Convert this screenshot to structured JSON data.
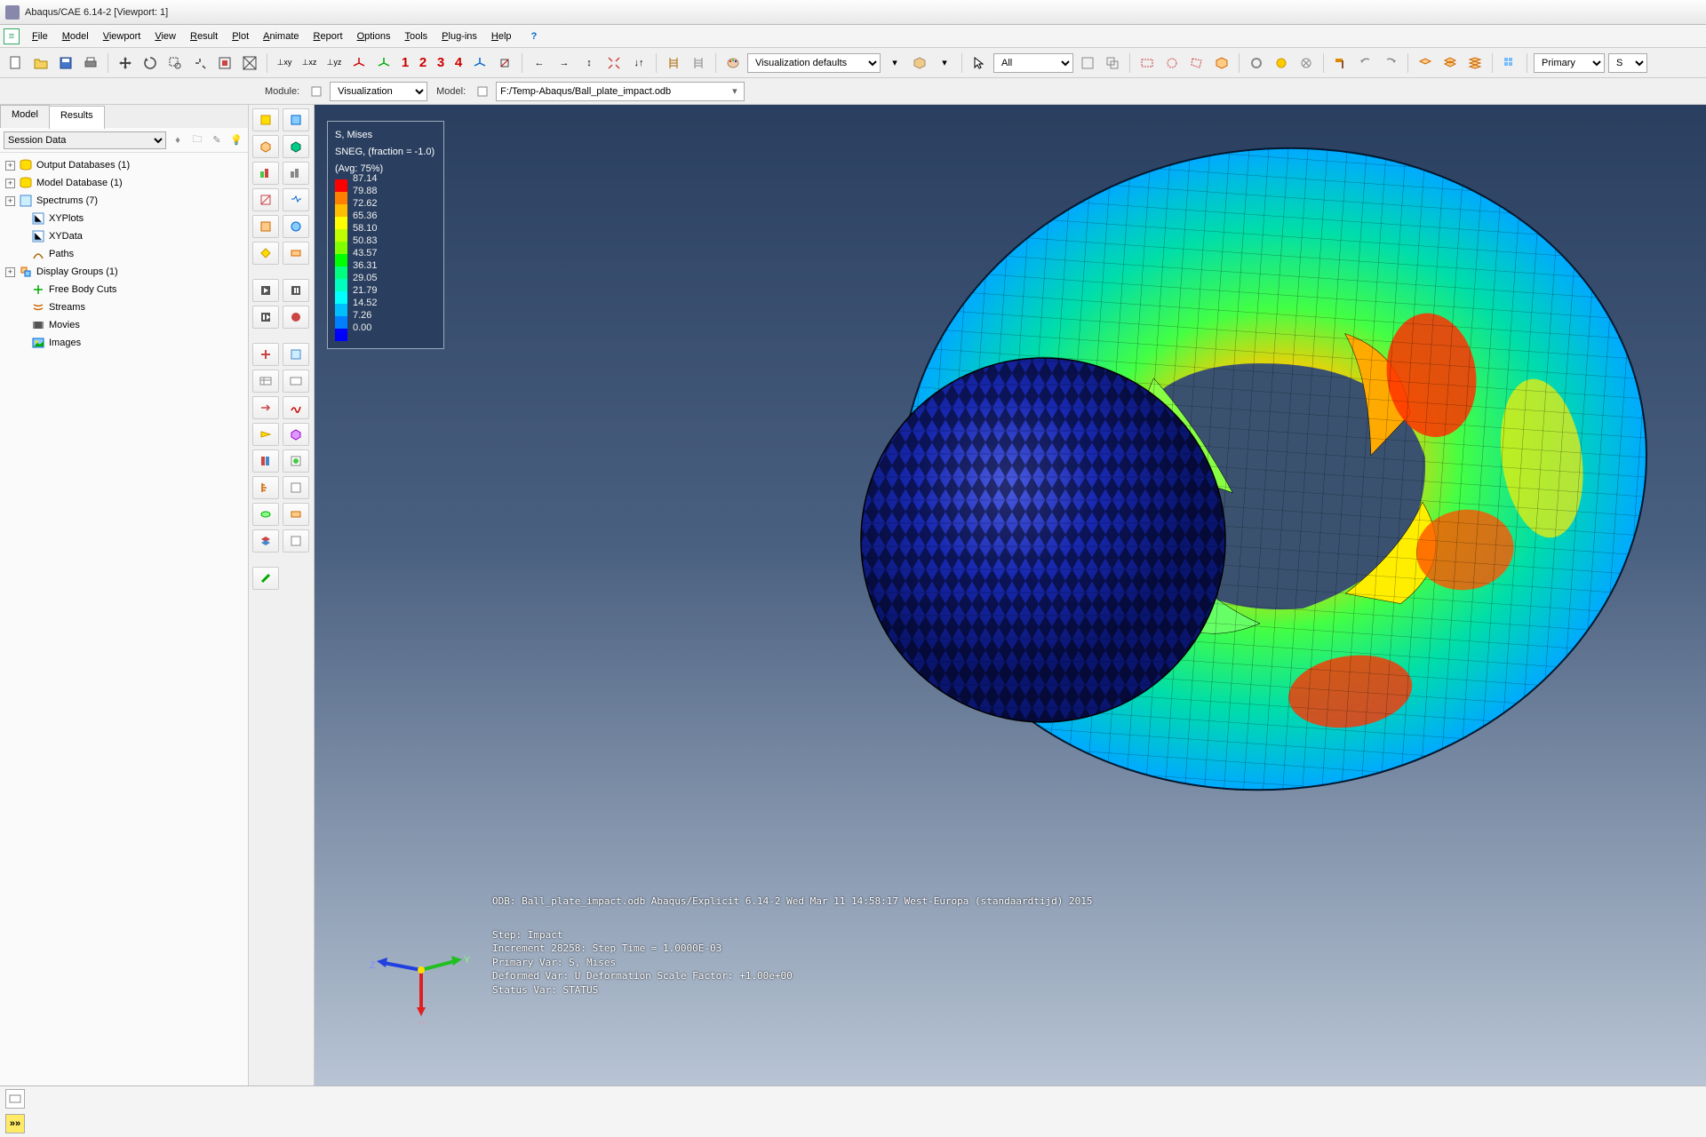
{
  "title": "Abaqus/CAE 6.14-2  [Viewport: 1]",
  "menu": [
    "File",
    "Model",
    "Viewport",
    "View",
    "Result",
    "Plot",
    "Animate",
    "Report",
    "Options",
    "Tools",
    "Plug-ins",
    "Help"
  ],
  "toolbar": {
    "nums": [
      "1",
      "2",
      "3",
      "4"
    ],
    "vis_defaults": "Visualization defaults",
    "all": "All",
    "primary": "Primary",
    "s": "S"
  },
  "context": {
    "module_label": "Module:",
    "module_value": "Visualization",
    "model_label": "Model:",
    "model_value": "F:/Temp-Abaqus/Ball_plate_impact.odb"
  },
  "left": {
    "tabs": [
      "Model",
      "Results"
    ],
    "active_tab": 1,
    "session": "Session Data",
    "tree": [
      {
        "icon": "db",
        "label": "Output Databases (1)",
        "expand": true
      },
      {
        "icon": "db",
        "label": "Model Database (1)",
        "expand": true
      },
      {
        "icon": "spec",
        "label": "Spectrums (7)",
        "expand": true
      },
      {
        "icon": "xy",
        "label": "XYPlots",
        "expand": false,
        "indent": 1
      },
      {
        "icon": "xy",
        "label": "XYData",
        "expand": false,
        "indent": 1
      },
      {
        "icon": "path",
        "label": "Paths",
        "expand": false,
        "indent": 1
      },
      {
        "icon": "dg",
        "label": "Display Groups (1)",
        "expand": true
      },
      {
        "icon": "fbc",
        "label": "Free Body Cuts",
        "expand": false,
        "indent": 1
      },
      {
        "icon": "str",
        "label": "Streams",
        "expand": false,
        "indent": 1
      },
      {
        "icon": "mov",
        "label": "Movies",
        "expand": false,
        "indent": 1
      },
      {
        "icon": "img",
        "label": "Images",
        "expand": false,
        "indent": 1
      }
    ]
  },
  "legend": {
    "title1": "S, Mises",
    "title2": "SNEG, (fraction = -1.0)",
    "title3": "(Avg: 75%)",
    "colors": [
      "#ff0000",
      "#ff7f00",
      "#ffbf00",
      "#ffff00",
      "#bfff00",
      "#7fff00",
      "#00ff00",
      "#00ff7f",
      "#00ffbf",
      "#00ffff",
      "#00bfff",
      "#007fff",
      "#0000ff"
    ],
    "values": [
      "87.14",
      "79.88",
      "72.62",
      "65.36",
      "58.10",
      "50.83",
      "43.57",
      "36.31",
      "29.05",
      "21.79",
      "14.52",
      "7.26",
      "0.00"
    ]
  },
  "viewport": {
    "odb": "ODB: Ball_plate_impact.odb   Abaqus/Explicit 6.14-2   Wed Mar 11 14:58:17 West-Europa (standaardtijd) 2015",
    "step": [
      "Step: Impact",
      "Increment   28258: Step Time =   1.0000E-03",
      "Primary Var: S, Mises",
      "Deformed Var: U   Deformation Scale Factor: +1.00e+00",
      "Status Var: STATUS"
    ],
    "axes": {
      "x": "X",
      "y": "Y",
      "z": "Z"
    }
  },
  "sim": {
    "ball_color": "#1828b0",
    "plate_colors": "radial"
  }
}
